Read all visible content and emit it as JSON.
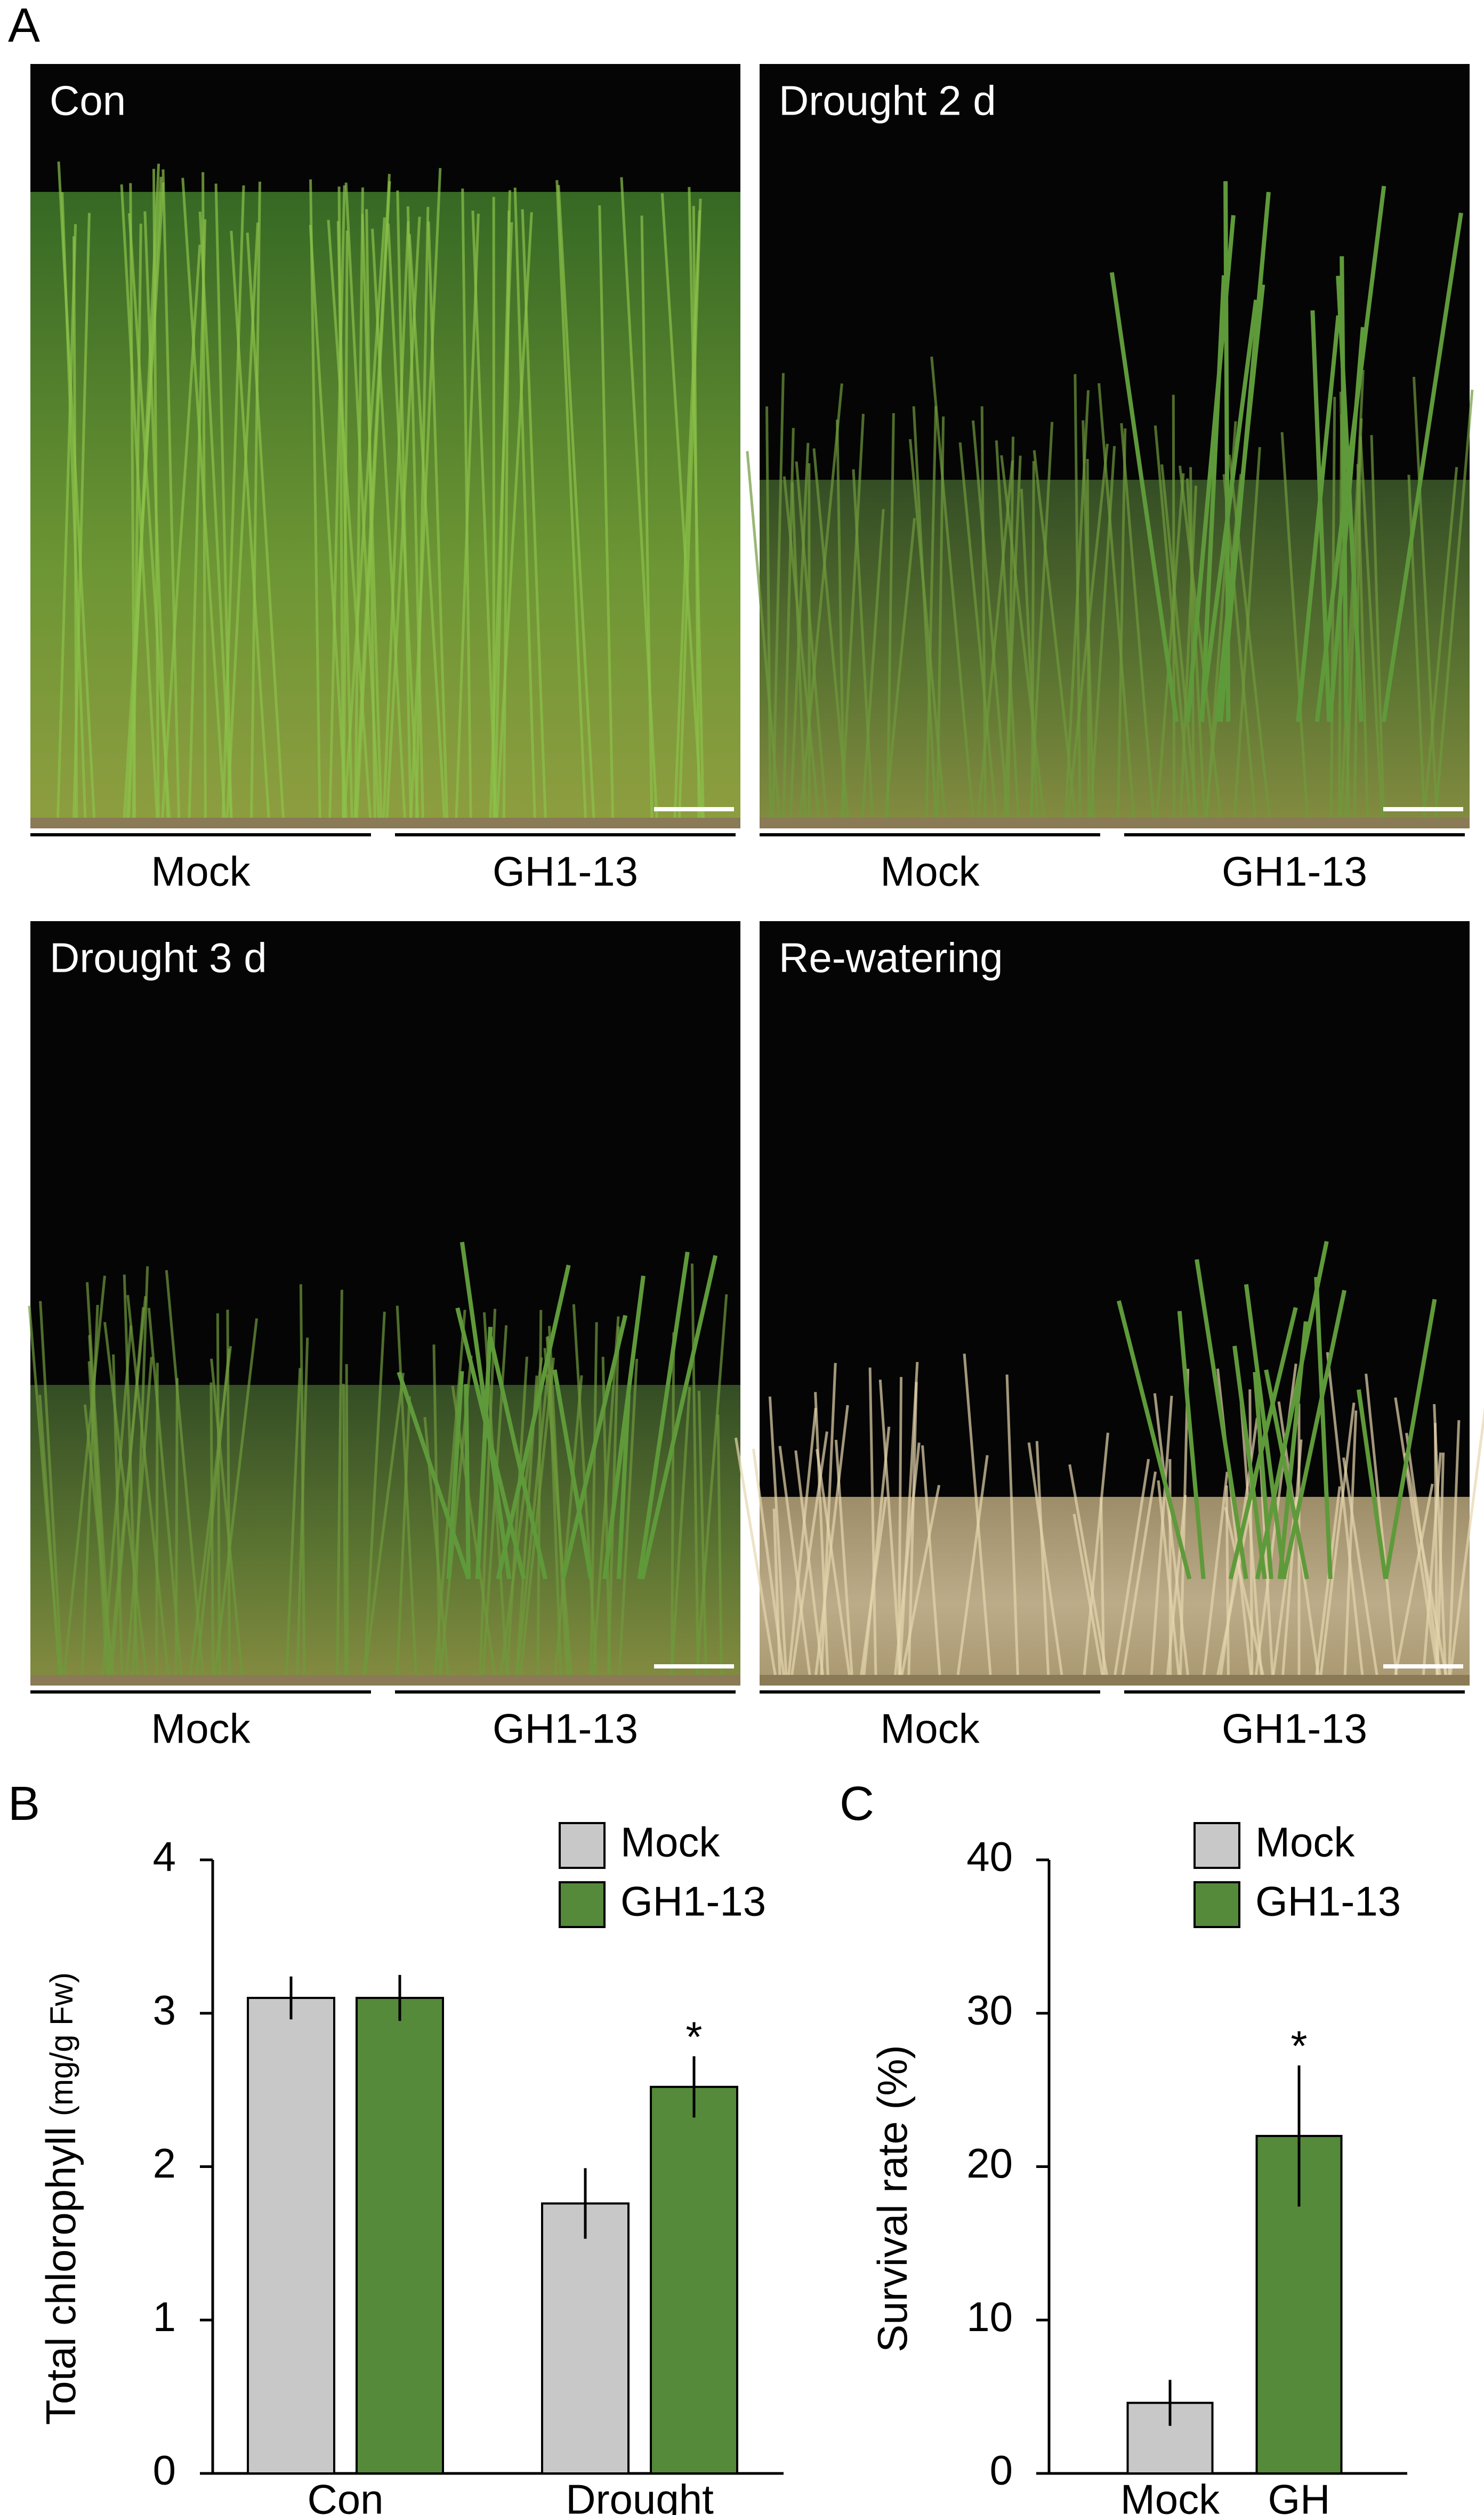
{
  "figure": {
    "panel_labels": [
      "A",
      "B",
      "C"
    ],
    "photos": [
      {
        "title": "Con",
        "groups": [
          "Mock",
          "GH1-13"
        ],
        "plants": "green"
      },
      {
        "title": "Drought 2 d",
        "groups": [
          "Mock",
          "GH1-13"
        ],
        "plants": "wilted"
      },
      {
        "title": "Drought 3 d",
        "groups": [
          "Mock",
          "GH1-13"
        ],
        "plants": "wilted"
      },
      {
        "title": "Re-watering",
        "groups": [
          "Mock",
          "GH1-13"
        ],
        "plants": "dead"
      }
    ]
  },
  "chart_data": [
    {
      "type": "bar",
      "y_label": "Total chlorophyll",
      "y_label_unit": "(mg/g Fw)",
      "categories": [
        "Con",
        "Drought"
      ],
      "series": [
        {
          "name": "Mock",
          "color": "#c8c8c8",
          "values": [
            3.1,
            1.76
          ],
          "errors": [
            0.14,
            0.23
          ],
          "significance": [
            null,
            null
          ]
        },
        {
          "name": "GH1-13",
          "color": "#548a3a",
          "values": [
            3.1,
            2.52
          ],
          "errors": [
            0.15,
            0.2
          ],
          "significance": [
            null,
            "*"
          ]
        }
      ],
      "ylim": [
        0,
        4
      ],
      "yticks": [
        0,
        1,
        2,
        3,
        4
      ],
      "legend": "top-right"
    },
    {
      "type": "bar",
      "y_label": "Survival rate (%)",
      "categories": [
        "Mock",
        "GH"
      ],
      "values": [
        4.6,
        22
      ],
      "errors": [
        1.5,
        4.6
      ],
      "significance": [
        null,
        "*"
      ],
      "colors": [
        "#c8c8c8",
        "#548a3a"
      ],
      "legend_names": [
        "Mock",
        "GH1-13"
      ],
      "ylim": [
        0,
        40
      ],
      "yticks": [
        0,
        10,
        20,
        30,
        40
      ],
      "legend": "top-right"
    }
  ]
}
